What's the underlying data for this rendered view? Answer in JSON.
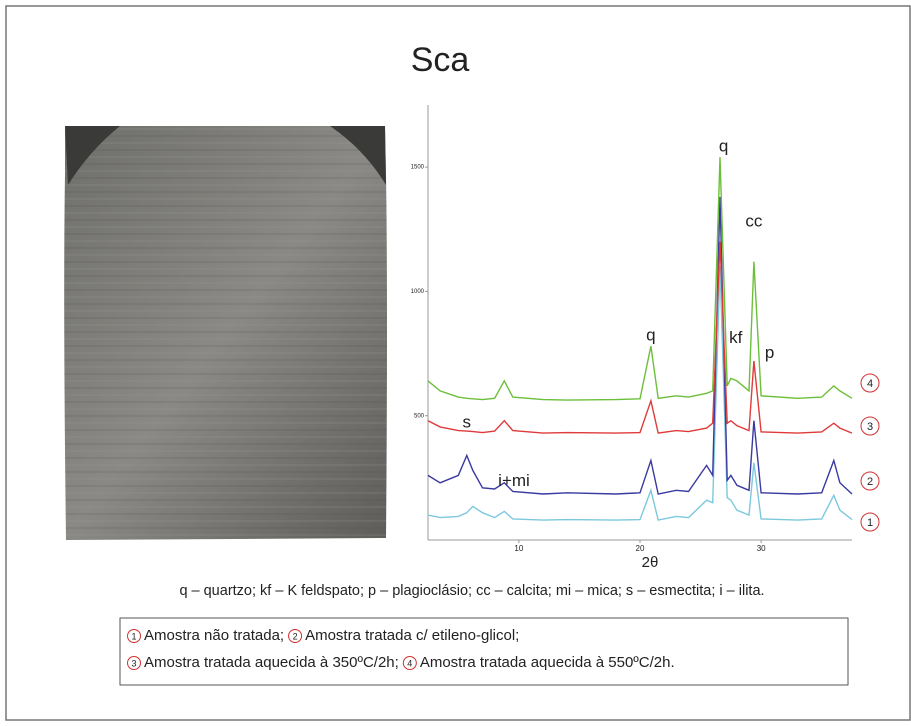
{
  "chart_data": {
    "type": "line",
    "title": "Sca",
    "x_label": "2θ",
    "xlim": [
      2.5,
      37.5
    ],
    "xticks": [
      10,
      20,
      30
    ],
    "ylim": [
      0,
      1750
    ],
    "yticks": [
      500,
      1000,
      1500
    ],
    "x": [
      2.5,
      3.5,
      5,
      5.7,
      6.2,
      7,
      8,
      8.8,
      9.5,
      12,
      14,
      18,
      20,
      20.9,
      21.5,
      23,
      24,
      25.5,
      26,
      26.6,
      27.2,
      27.5,
      28,
      29,
      29.4,
      30,
      33,
      35,
      36,
      36.5,
      37.5
    ],
    "series": [
      {
        "name": "1",
        "description": "Amostra não tratada;",
        "color": "#7cc8dc",
        "values": [
          100,
          90,
          95,
          110,
          135,
          110,
          90,
          115,
          85,
          80,
          82,
          80,
          82,
          200,
          80,
          95,
          90,
          160,
          150,
          1100,
          170,
          160,
          120,
          100,
          310,
          85,
          80,
          85,
          180,
          120,
          82
        ]
      },
      {
        "name": "2",
        "description": "Amostra tratada c/ etileno-glicol;",
        "color": "#3a3aa0",
        "values": [
          260,
          230,
          260,
          340,
          280,
          210,
          205,
          230,
          195,
          185,
          190,
          185,
          190,
          320,
          185,
          200,
          195,
          300,
          260,
          1380,
          240,
          260,
          220,
          200,
          480,
          190,
          185,
          190,
          320,
          230,
          185
        ]
      },
      {
        "name": "3",
        "description": "Amostra tratada aquecida à 350ºC/2h;",
        "color": "#e03a3a",
        "values": [
          480,
          455,
          440,
          438,
          436,
          432,
          438,
          480,
          440,
          430,
          432,
          430,
          432,
          560,
          430,
          440,
          436,
          450,
          470,
          1200,
          470,
          480,
          460,
          440,
          720,
          435,
          430,
          435,
          470,
          450,
          430
        ]
      },
      {
        "name": "4",
        "description": "Amostra tratada aquecida à 550ºC/2h.",
        "color": "#6cbf3a",
        "values": [
          640,
          600,
          575,
          570,
          568,
          565,
          570,
          640,
          575,
          565,
          563,
          565,
          568,
          780,
          570,
          580,
          575,
          590,
          600,
          1540,
          620,
          650,
          640,
          600,
          1120,
          580,
          570,
          575,
          620,
          600,
          570
        ]
      }
    ],
    "annotations": [
      {
        "text": "q",
        "x": 26.9,
        "y": 1580
      },
      {
        "text": "cc",
        "x": 29.4,
        "y": 1280
      },
      {
        "text": "q",
        "x": 20.9,
        "y": 820
      },
      {
        "text": "kf",
        "x": 27.9,
        "y": 810
      },
      {
        "text": "p",
        "x": 30.7,
        "y": 750
      },
      {
        "text": "s",
        "x": 5.7,
        "y": 470
      },
      {
        "text": "i+mi",
        "x": 9.6,
        "y": 235
      }
    ],
    "caption": "q – quartzo; kf – K feldspato; p – plagioclásio; cc – calcita; mi – mica; s – esmectita; i – ilita."
  }
}
